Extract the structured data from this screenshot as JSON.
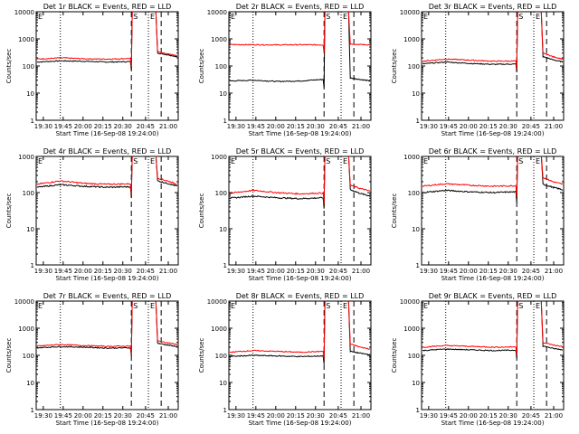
{
  "figure": {
    "panels": [
      {
        "title": "Det 1r BLACK = Events, RED = LLD"
      },
      {
        "title": "Det 2r BLACK = Events, RED = LLD"
      },
      {
        "title": "Det 3r BLACK = Events, RED = LLD"
      },
      {
        "title": "Det 4r BLACK = Events, RED = LLD"
      },
      {
        "title": "Det 5r BLACK = Events, RED = LLD"
      },
      {
        "title": "Det 6r BLACK = Events, RED = LLD"
      },
      {
        "title": "Det 7r BLACK = Events, RED = LLD"
      },
      {
        "title": "Det 8r BLACK = Events, RED = LLD"
      },
      {
        "title": "Det 9r BLACK = Events, RED = LLD"
      }
    ],
    "xlabel": "Start Time (16-Sep-08 19:24:00)",
    "ylabel": "Counts/sec",
    "xticks": [
      "19:30",
      "19:45",
      "20:00",
      "20:15",
      "20:30",
      "20:45",
      "21:00"
    ],
    "yticks": [
      "1",
      "10",
      "100",
      "1000",
      "10000"
    ],
    "markers": {
      "start": "S",
      "end": "E"
    }
  },
  "chart_data": [
    {
      "type": "line",
      "title": "Det 1r BLACK = Events, RED = LLD",
      "yscale": "log",
      "ylim": [
        1,
        10000
      ],
      "x_minutes_range": [
        19.4,
        21.2
      ],
      "saa_start": 20.48,
      "saa_end": 20.78,
      "series": [
        {
          "name": "Events",
          "color": "#000000",
          "pre": [
            140,
            155,
            150,
            140,
            145
          ],
          "post": [
            300,
            260,
            220
          ]
        },
        {
          "name": "LLD",
          "color": "#ff0000",
          "pre": [
            180,
            200,
            185,
            180,
            190
          ],
          "post": [
            330,
            280,
            240
          ]
        }
      ]
    },
    {
      "type": "line",
      "title": "Det 2r BLACK = Events, RED = LLD",
      "yscale": "log",
      "ylim": [
        1,
        10000
      ],
      "x_minutes_range": [
        19.4,
        21.2
      ],
      "saa_start": 20.48,
      "saa_end": 20.78,
      "series": [
        {
          "name": "Events",
          "color": "#000000",
          "pre": [
            28,
            30,
            27,
            28,
            32
          ],
          "post": [
            36,
            32,
            28
          ]
        },
        {
          "name": "LLD",
          "color": "#ff0000",
          "pre": [
            620,
            610,
            600,
            610,
            600
          ],
          "post": [
            650,
            620,
            600
          ]
        }
      ]
    },
    {
      "type": "line",
      "title": "Det 3r BLACK = Events, RED = LLD",
      "yscale": "log",
      "ylim": [
        1,
        10000
      ],
      "x_minutes_range": [
        19.4,
        21.2
      ],
      "saa_start": 20.48,
      "saa_end": 20.78,
      "series": [
        {
          "name": "Events",
          "color": "#000000",
          "pre": [
            120,
            140,
            125,
            115,
            118
          ],
          "post": [
            220,
            170,
            140
          ]
        },
        {
          "name": "LLD",
          "color": "#ff0000",
          "pre": [
            150,
            180,
            165,
            150,
            152
          ],
          "post": [
            300,
            220,
            180
          ]
        }
      ]
    },
    {
      "type": "line",
      "title": "Det 4r BLACK = Events, RED = LLD",
      "yscale": "log",
      "ylim": [
        1,
        1000
      ],
      "x_minutes_range": [
        19.4,
        21.2
      ],
      "saa_start": 20.48,
      "saa_end": 20.78,
      "series": [
        {
          "name": "Events",
          "color": "#000000",
          "pre": [
            140,
            165,
            150,
            140,
            145
          ],
          "post": [
            210,
            180,
            150
          ]
        },
        {
          "name": "LLD",
          "color": "#ff0000",
          "pre": [
            170,
            210,
            180,
            170,
            175
          ],
          "post": [
            250,
            210,
            170
          ]
        }
      ]
    },
    {
      "type": "line",
      "title": "Det 5r BLACK = Events, RED = LLD",
      "yscale": "log",
      "ylim": [
        1,
        1000
      ],
      "x_minutes_range": [
        19.4,
        21.2
      ],
      "saa_start": 20.48,
      "saa_end": 20.78,
      "series": [
        {
          "name": "Events",
          "color": "#000000",
          "pre": [
            70,
            80,
            72,
            68,
            72
          ],
          "post": [
            120,
            95,
            80
          ]
        },
        {
          "name": "LLD",
          "color": "#ff0000",
          "pre": [
            95,
            115,
            100,
            92,
            98
          ],
          "post": [
            160,
            130,
            110
          ]
        }
      ]
    },
    {
      "type": "line",
      "title": "Det 6r BLACK = Events, RED = LLD",
      "yscale": "log",
      "ylim": [
        1,
        1000
      ],
      "x_minutes_range": [
        19.4,
        21.2
      ],
      "saa_start": 20.48,
      "saa_end": 20.78,
      "series": [
        {
          "name": "Events",
          "color": "#000000",
          "pre": [
            100,
            115,
            105,
            100,
            105
          ],
          "post": [
            170,
            140,
            120
          ]
        },
        {
          "name": "LLD",
          "color": "#ff0000",
          "pre": [
            150,
            175,
            160,
            150,
            155
          ],
          "post": [
            260,
            200,
            170
          ]
        }
      ]
    },
    {
      "type": "line",
      "title": "Det 7r BLACK = Events, RED = LLD",
      "yscale": "log",
      "ylim": [
        1,
        10000
      ],
      "x_minutes_range": [
        19.4,
        21.2
      ],
      "saa_start": 20.48,
      "saa_end": 20.78,
      "series": [
        {
          "name": "Events",
          "color": "#000000",
          "pre": [
            190,
            210,
            200,
            185,
            190
          ],
          "post": [
            280,
            240,
            210
          ]
        },
        {
          "name": "LLD",
          "color": "#ff0000",
          "pre": [
            220,
            250,
            230,
            215,
            220
          ],
          "post": [
            340,
            290,
            250
          ]
        }
      ]
    },
    {
      "type": "line",
      "title": "Det 8r BLACK = Events, RED = LLD",
      "yscale": "log",
      "ylim": [
        1,
        10000
      ],
      "x_minutes_range": [
        19.4,
        21.2
      ],
      "saa_start": 20.48,
      "saa_end": 20.78,
      "series": [
        {
          "name": "Events",
          "color": "#000000",
          "pre": [
            90,
            100,
            95,
            90,
            95
          ],
          "post": [
            140,
            120,
            105
          ]
        },
        {
          "name": "LLD",
          "color": "#ff0000",
          "pre": [
            130,
            150,
            140,
            130,
            140
          ],
          "post": [
            260,
            200,
            170
          ]
        }
      ]
    },
    {
      "type": "line",
      "title": "Det 9r BLACK = Events, RED = LLD",
      "yscale": "log",
      "ylim": [
        1,
        10000
      ],
      "x_minutes_range": [
        19.4,
        21.2
      ],
      "saa_start": 20.48,
      "saa_end": 20.78,
      "series": [
        {
          "name": "Events",
          "color": "#000000",
          "pre": [
            150,
            170,
            160,
            150,
            155
          ],
          "post": [
            220,
            180,
            160
          ]
        },
        {
          "name": "LLD",
          "color": "#ff0000",
          "pre": [
            200,
            230,
            215,
            200,
            205
          ],
          "post": [
            300,
            240,
            210
          ]
        }
      ]
    }
  ]
}
